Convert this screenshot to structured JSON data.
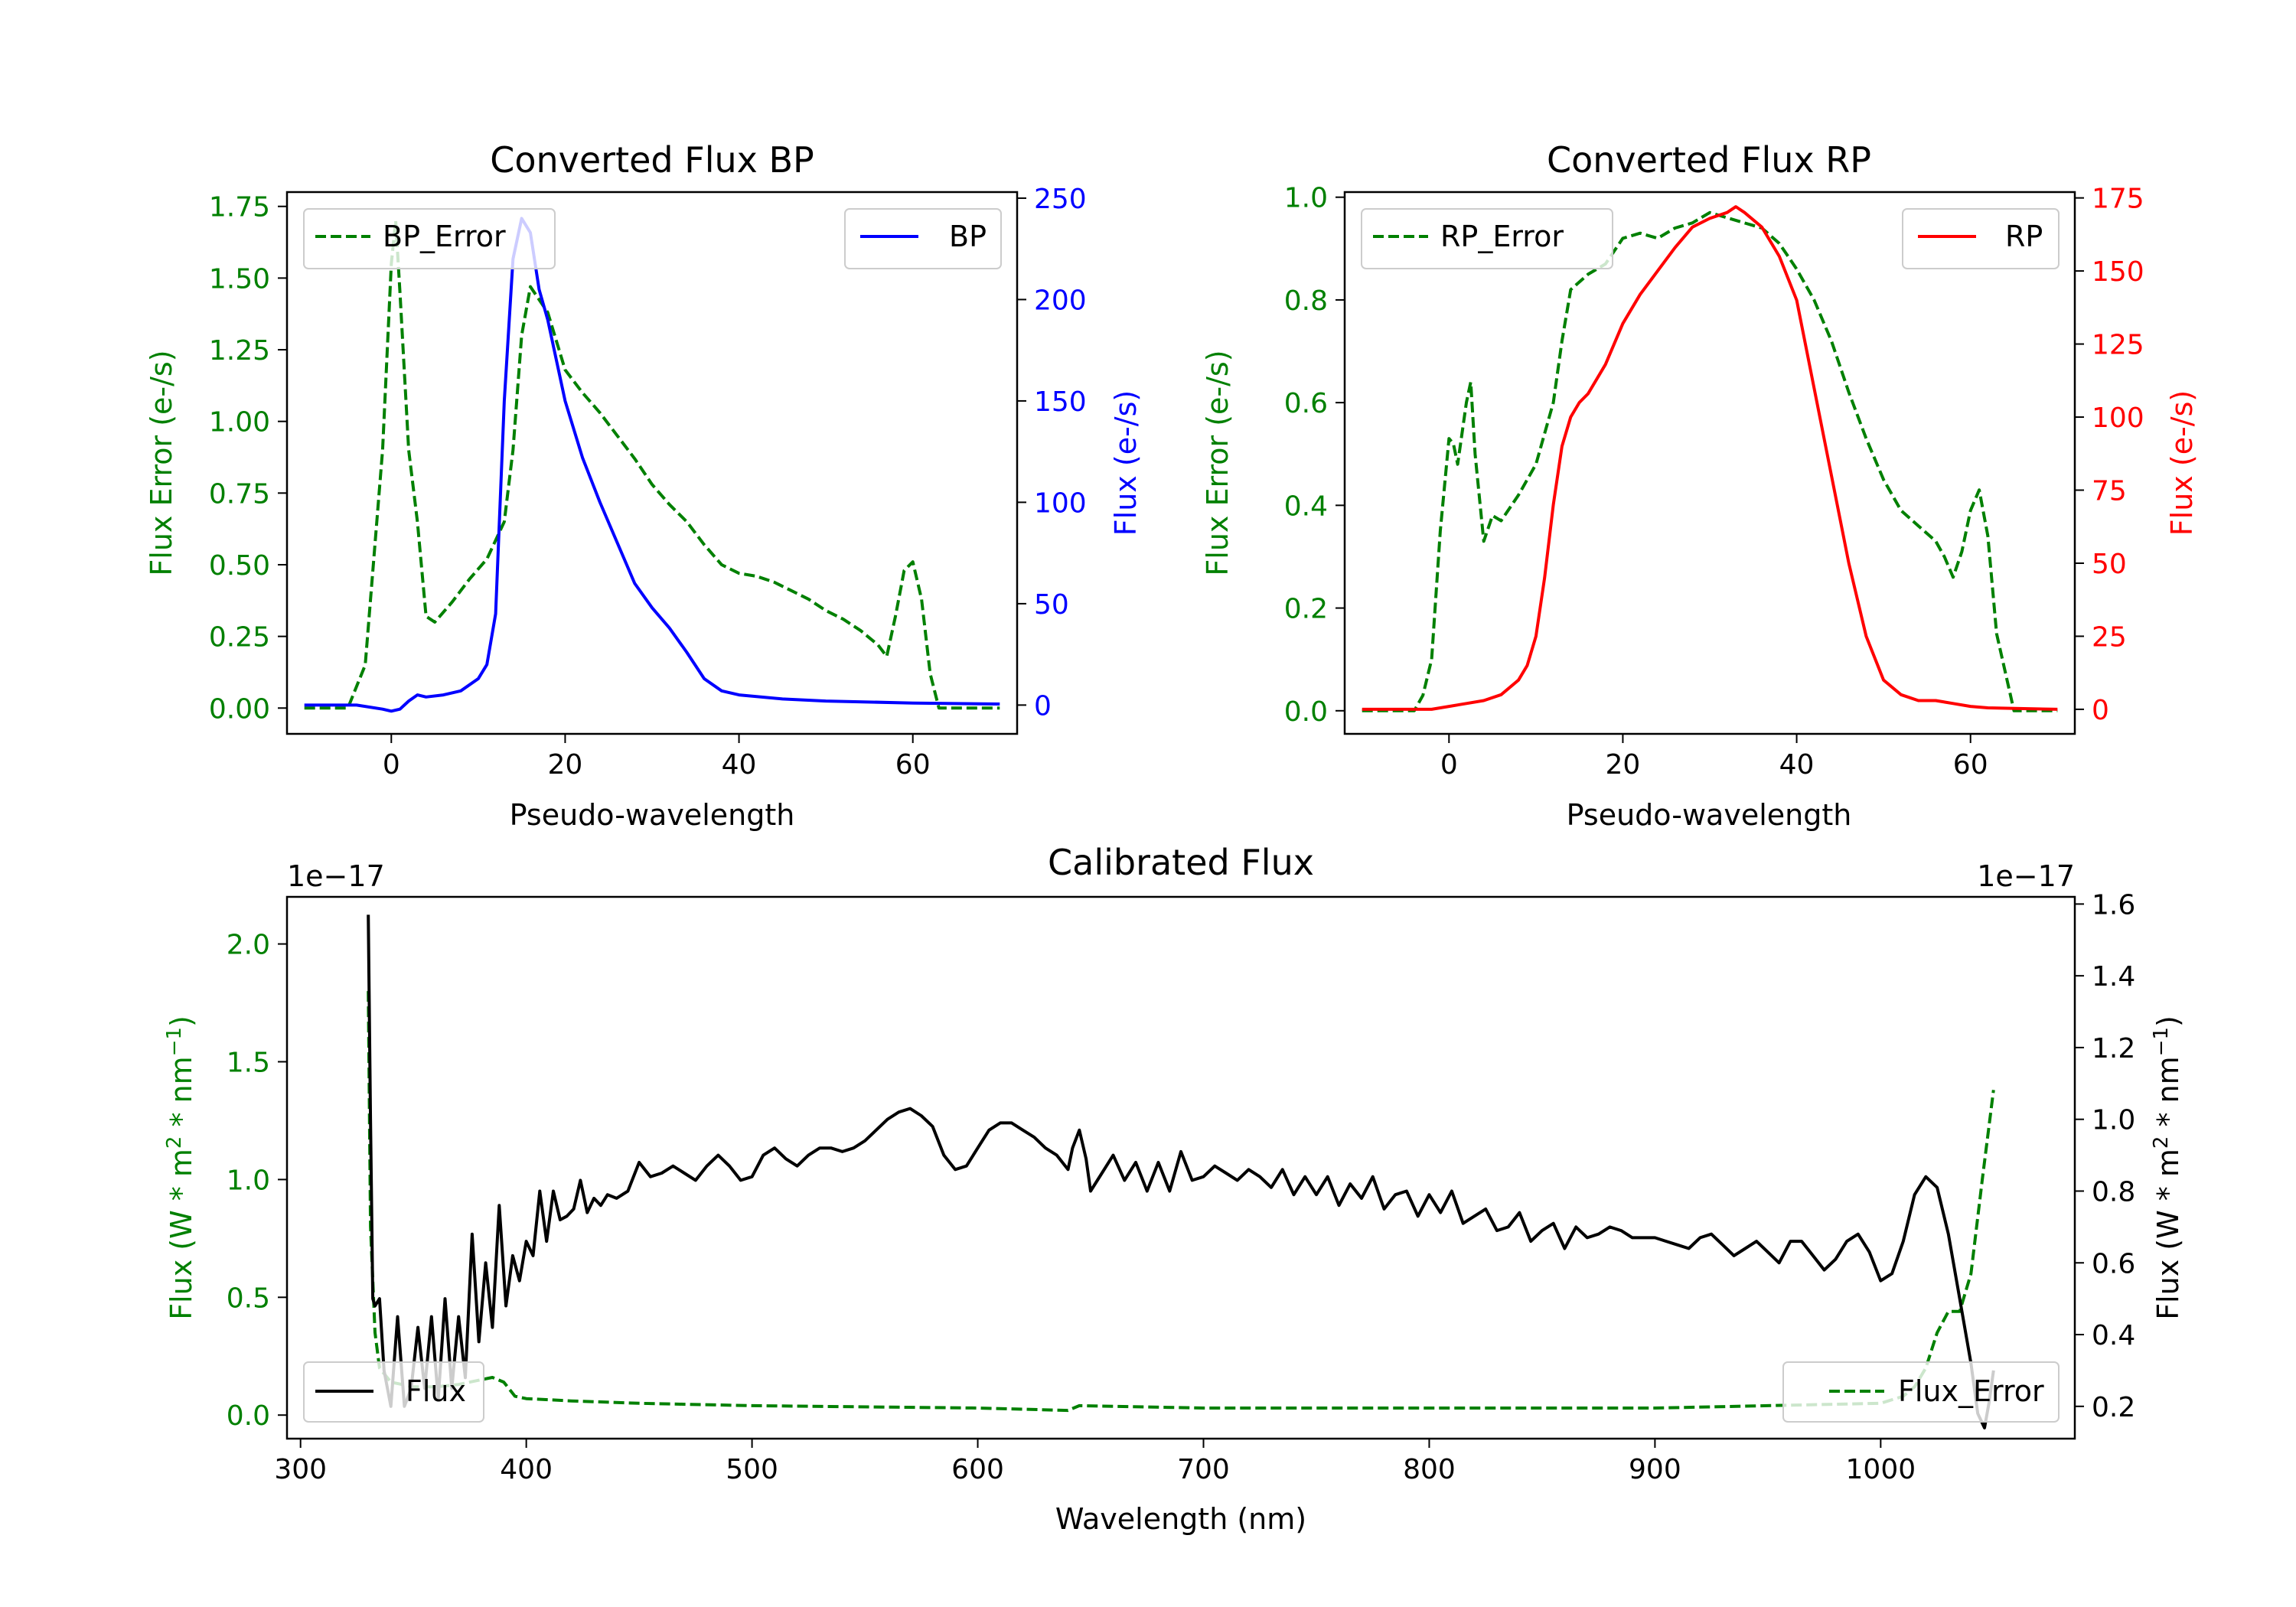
{
  "chart_data": [
    {
      "type": "line",
      "title": "Converted Flux BP",
      "xlabel": "Pseudo-wavelength",
      "ylabel_left": "Flux Error (e-/s)",
      "ylabel_right": "Flux (e-/s)",
      "xlim": [
        -12,
        72
      ],
      "ylim_left": [
        -0.09,
        1.8
      ],
      "ylim_right": [
        -14.2,
        253
      ],
      "xticks": [
        "0",
        "20",
        "40",
        "60"
      ],
      "yticks_left": [
        "0.00",
        "0.25",
        "0.50",
        "0.75",
        "1.00",
        "1.25",
        "1.50",
        "1.75"
      ],
      "yticks_right": [
        "0",
        "50",
        "100",
        "150",
        "200",
        "250"
      ],
      "grid": false,
      "series": [
        {
          "name": "BP_Error",
          "axis": "left",
          "style": "dashed",
          "color": "#008000",
          "x": [
            -10,
            -5,
            -3,
            -1,
            0,
            0.5,
            1,
            2,
            3,
            4,
            5,
            7,
            9,
            11,
            13,
            14,
            15,
            16,
            18,
            20,
            22,
            24,
            26,
            28,
            30,
            32,
            34,
            36,
            38,
            40,
            42,
            44,
            46,
            48,
            50,
            52,
            54,
            56,
            57,
            58,
            59,
            60,
            61,
            62,
            63,
            65,
            70
          ],
          "values": [
            0,
            0,
            0.15,
            0.9,
            1.55,
            1.7,
            1.45,
            0.9,
            0.65,
            0.32,
            0.3,
            0.37,
            0.45,
            0.52,
            0.65,
            0.9,
            1.3,
            1.47,
            1.38,
            1.18,
            1.1,
            1.03,
            0.95,
            0.87,
            0.78,
            0.71,
            0.65,
            0.57,
            0.5,
            0.47,
            0.46,
            0.44,
            0.41,
            0.38,
            0.34,
            0.31,
            0.27,
            0.22,
            0.18,
            0.32,
            0.48,
            0.51,
            0.38,
            0.12,
            0,
            0,
            0
          ]
        },
        {
          "name": "BP",
          "axis": "right",
          "style": "solid",
          "color": "#0000ff",
          "x": [
            -10,
            -4,
            -1,
            0,
            1,
            2,
            3,
            4,
            6,
            8,
            10,
            11,
            12,
            13,
            14,
            15,
            16,
            17,
            18,
            20,
            22,
            24,
            26,
            28,
            30,
            32,
            34,
            36,
            38,
            40,
            45,
            50,
            60,
            70
          ],
          "values": [
            0,
            0,
            -2,
            -3,
            -2,
            2,
            5,
            4,
            5,
            7,
            13,
            20,
            45,
            150,
            220,
            240,
            233,
            205,
            190,
            150,
            122,
            100,
            80,
            60,
            48,
            38,
            26,
            13,
            7,
            5,
            3,
            2,
            1,
            0.5
          ]
        }
      ]
    },
    {
      "type": "line",
      "title": "Converted Flux RP",
      "xlabel": "Pseudo-wavelength",
      "ylabel_left": "Flux Error (e-/s)",
      "ylabel_right": "Flux (e-/s)",
      "xlim": [
        -12,
        72
      ],
      "ylim_left": [
        -0.045,
        1.01
      ],
      "ylim_right": [
        -8.4,
        177
      ],
      "xticks": [
        "0",
        "20",
        "40",
        "60"
      ],
      "yticks_left": [
        "0.0",
        "0.2",
        "0.4",
        "0.6",
        "0.8",
        "1.0"
      ],
      "yticks_right": [
        "0",
        "25",
        "50",
        "75",
        "100",
        "125",
        "150",
        "175"
      ],
      "grid": false,
      "series": [
        {
          "name": "RP_Error",
          "axis": "left",
          "style": "dashed",
          "color": "#008000",
          "x": [
            -10,
            -4,
            -3,
            -2,
            -1,
            0,
            0.5,
            1,
            2,
            2.5,
            3,
            4,
            5,
            6,
            8,
            10,
            12,
            13,
            14,
            16,
            18,
            20,
            22,
            24,
            26,
            28,
            30,
            32,
            34,
            36,
            38,
            40,
            42,
            44,
            46,
            48,
            50,
            52,
            54,
            56,
            57,
            58,
            59,
            60,
            61,
            62,
            63,
            65,
            70
          ],
          "values": [
            0,
            0,
            0.03,
            0.1,
            0.35,
            0.53,
            0.52,
            0.48,
            0.6,
            0.64,
            0.5,
            0.33,
            0.38,
            0.37,
            0.42,
            0.48,
            0.6,
            0.72,
            0.82,
            0.85,
            0.87,
            0.92,
            0.93,
            0.92,
            0.94,
            0.95,
            0.97,
            0.96,
            0.95,
            0.94,
            0.91,
            0.86,
            0.8,
            0.72,
            0.62,
            0.53,
            0.45,
            0.39,
            0.36,
            0.33,
            0.3,
            0.26,
            0.31,
            0.39,
            0.43,
            0.34,
            0.15,
            0,
            0
          ]
        },
        {
          "name": "RP",
          "axis": "right",
          "style": "solid",
          "color": "#ff0000",
          "x": [
            -10,
            -2,
            0,
            2,
            4,
            6,
            8,
            9,
            10,
            11,
            12,
            13,
            14,
            15,
            16,
            18,
            20,
            22,
            24,
            26,
            28,
            30,
            32,
            33,
            34,
            36,
            38,
            40,
            42,
            44,
            46,
            48,
            50,
            52,
            54,
            56,
            58,
            60,
            62,
            70
          ],
          "values": [
            0,
            0,
            1,
            2,
            3,
            5,
            10,
            15,
            25,
            45,
            70,
            90,
            100,
            105,
            108,
            118,
            132,
            142,
            150,
            158,
            165,
            168,
            170,
            172,
            170,
            165,
            155,
            140,
            110,
            80,
            50,
            25,
            10,
            5,
            3,
            3,
            2,
            1,
            0.5,
            0
          ]
        }
      ]
    },
    {
      "type": "line",
      "title": "Calibrated Flux",
      "xlabel": "Wavelength (nm)",
      "ylabel_left": "Flux (W * m^2 * nm^-1)",
      "ylabel_right": "Flux (W * m^2 * nm^-1)",
      "offset_left": "1e−17",
      "offset_right": "1e−17",
      "xlim": [
        294,
        1086
      ],
      "ylim_left": [
        -0.1,
        2.2
      ],
      "ylim_right": [
        0.11,
        1.62
      ],
      "xticks": [
        "300",
        "400",
        "500",
        "600",
        "700",
        "800",
        "900",
        "1000"
      ],
      "yticks_left": [
        "0.0",
        "0.5",
        "1.0",
        "1.5",
        "2.0"
      ],
      "yticks_right": [
        "0.2",
        "0.4",
        "0.6",
        "0.8",
        "1.0",
        "1.2",
        "1.4",
        "1.6"
      ],
      "grid": false,
      "series": [
        {
          "name": "Flux_Error",
          "axis": "left",
          "style": "dashed",
          "color": "#008000",
          "x": [
            330,
            331,
            333,
            335,
            340,
            350,
            360,
            370,
            380,
            385,
            390,
            395,
            400,
            420,
            450,
            500,
            600,
            640,
            645,
            700,
            800,
            900,
            1000,
            1010,
            1015,
            1020,
            1025,
            1030,
            1035,
            1040,
            1045,
            1050
          ],
          "values": [
            1.8,
            0.8,
            0.35,
            0.2,
            0.14,
            0.12,
            0.12,
            0.13,
            0.15,
            0.16,
            0.14,
            0.08,
            0.07,
            0.06,
            0.05,
            0.04,
            0.03,
            0.02,
            0.04,
            0.03,
            0.03,
            0.03,
            0.05,
            0.08,
            0.12,
            0.2,
            0.35,
            0.44,
            0.44,
            0.6,
            1.0,
            1.38
          ]
        },
        {
          "name": "Flux",
          "axis": "right",
          "style": "solid",
          "color": "#000000",
          "x": [
            330,
            331,
            332,
            333,
            335,
            337,
            340,
            343,
            346,
            349,
            352,
            355,
            358,
            361,
            364,
            367,
            370,
            373,
            376,
            379,
            382,
            385,
            388,
            391,
            394,
            397,
            400,
            403,
            406,
            409,
            412,
            415,
            418,
            421,
            424,
            427,
            430,
            433,
            436,
            440,
            445,
            450,
            455,
            460,
            465,
            470,
            475,
            480,
            485,
            490,
            495,
            500,
            505,
            510,
            515,
            520,
            525,
            530,
            535,
            540,
            545,
            550,
            555,
            560,
            565,
            570,
            575,
            580,
            585,
            590,
            595,
            600,
            605,
            610,
            615,
            620,
            625,
            630,
            635,
            640,
            642,
            645,
            648,
            650,
            655,
            660,
            665,
            670,
            675,
            680,
            685,
            690,
            695,
            700,
            705,
            710,
            715,
            720,
            725,
            730,
            735,
            740,
            745,
            750,
            755,
            760,
            765,
            770,
            775,
            780,
            785,
            790,
            795,
            800,
            805,
            810,
            815,
            820,
            825,
            830,
            835,
            840,
            845,
            850,
            855,
            860,
            865,
            870,
            875,
            880,
            885,
            890,
            895,
            900,
            905,
            910,
            915,
            920,
            925,
            930,
            935,
            940,
            945,
            950,
            955,
            960,
            965,
            970,
            975,
            980,
            985,
            990,
            995,
            1000,
            1005,
            1010,
            1015,
            1020,
            1025,
            1030,
            1035,
            1040,
            1043,
            1046,
            1048,
            1050
          ],
          "values": [
            1.57,
            1.0,
            0.5,
            0.48,
            0.5,
            0.3,
            0.2,
            0.45,
            0.2,
            0.25,
            0.42,
            0.25,
            0.45,
            0.22,
            0.5,
            0.25,
            0.45,
            0.28,
            0.68,
            0.38,
            0.6,
            0.42,
            0.76,
            0.48,
            0.62,
            0.55,
            0.66,
            0.62,
            0.8,
            0.66,
            0.8,
            0.72,
            0.73,
            0.75,
            0.83,
            0.74,
            0.78,
            0.76,
            0.79,
            0.78,
            0.8,
            0.88,
            0.84,
            0.85,
            0.87,
            0.85,
            0.83,
            0.87,
            0.9,
            0.87,
            0.83,
            0.84,
            0.9,
            0.92,
            0.89,
            0.87,
            0.9,
            0.92,
            0.92,
            0.91,
            0.92,
            0.94,
            0.97,
            1.0,
            1.02,
            1.03,
            1.01,
            0.98,
            0.9,
            0.86,
            0.87,
            0.92,
            0.97,
            0.99,
            0.99,
            0.97,
            0.95,
            0.92,
            0.9,
            0.86,
            0.92,
            0.97,
            0.89,
            0.8,
            0.85,
            0.9,
            0.83,
            0.88,
            0.8,
            0.88,
            0.8,
            0.91,
            0.83,
            0.84,
            0.87,
            0.85,
            0.83,
            0.86,
            0.84,
            0.81,
            0.86,
            0.79,
            0.84,
            0.79,
            0.84,
            0.76,
            0.82,
            0.78,
            0.84,
            0.75,
            0.79,
            0.8,
            0.73,
            0.79,
            0.74,
            0.8,
            0.71,
            0.73,
            0.75,
            0.69,
            0.7,
            0.74,
            0.66,
            0.69,
            0.71,
            0.64,
            0.7,
            0.67,
            0.68,
            0.7,
            0.69,
            0.67,
            0.67,
            0.67,
            0.66,
            0.65,
            0.64,
            0.67,
            0.68,
            0.65,
            0.62,
            0.64,
            0.66,
            0.63,
            0.6,
            0.66,
            0.66,
            0.62,
            0.58,
            0.61,
            0.66,
            0.68,
            0.63,
            0.55,
            0.57,
            0.66,
            0.79,
            0.84,
            0.81,
            0.68,
            0.5,
            0.32,
            0.18,
            0.14,
            0.21,
            0.3
          ]
        }
      ]
    }
  ]
}
